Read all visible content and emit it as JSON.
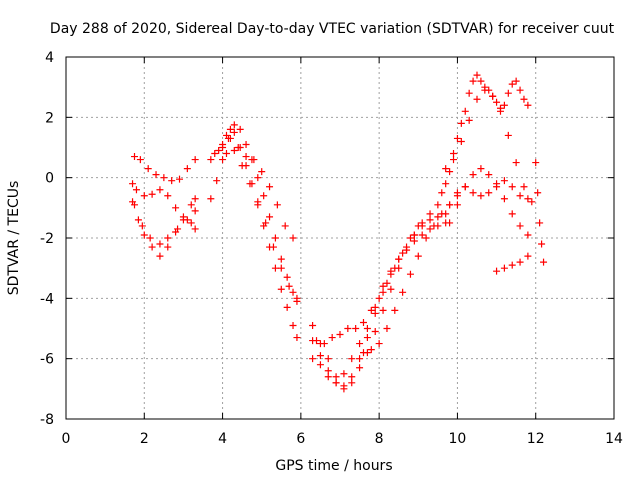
{
  "chart_data": {
    "type": "scatter",
    "title": "Day 288 of 2020, Sidereal Day-to-day VTEC variation (SDTVAR) for receiver cuut",
    "xlabel": "GPS time / hours",
    "ylabel": "SDTVAR / TECUs",
    "xlim": [
      0,
      14
    ],
    "ylim": [
      -8,
      4
    ],
    "xticks": [
      0,
      2,
      4,
      6,
      8,
      10,
      12,
      14
    ],
    "yticks": [
      -8,
      -6,
      -4,
      -2,
      0,
      2,
      4
    ],
    "xtick_labels": [
      "0",
      "2",
      "4",
      "6",
      "8",
      "10",
      "12",
      "14"
    ],
    "ytick_labels": [
      "-8",
      "-6",
      "-4",
      "-2",
      "0",
      "2",
      "4"
    ],
    "grid": true,
    "legend": "none",
    "marker": "plus",
    "color": "#ff0000",
    "series": [
      {
        "x": [
          1.75,
          1.9,
          2.1,
          2.3,
          2.5,
          2.7,
          2.9,
          3.1,
          3.3
        ],
        "y": [
          0.7,
          0.6,
          0.3,
          0.1,
          0.0,
          -0.1,
          -0.05,
          0.3,
          0.6
        ]
      },
      {
        "x": [
          1.7,
          1.8,
          2.0,
          2.2,
          2.4,
          2.6,
          2.8,
          3.0,
          3.2,
          3.3
        ],
        "y": [
          -0.2,
          -0.4,
          -0.6,
          -0.55,
          -0.4,
          -0.6,
          -1.0,
          -1.3,
          -1.5,
          -1.7
        ]
      },
      {
        "x": [
          1.7,
          1.85,
          2.0,
          2.2,
          2.4,
          2.6,
          2.8,
          3.0,
          3.2,
          3.3
        ],
        "y": [
          -0.8,
          -1.4,
          -1.9,
          -2.3,
          -2.6,
          -2.3,
          -1.8,
          -1.4,
          -0.9,
          -0.7
        ]
      },
      {
        "x": [
          1.75,
          1.95,
          2.15,
          2.4,
          2.6,
          2.85,
          3.1,
          3.3
        ],
        "y": [
          -0.9,
          -1.6,
          -2.0,
          -2.2,
          -2.0,
          -1.7,
          -1.4,
          -1.1
        ]
      },
      {
        "x": [
          3.7,
          3.8,
          3.9,
          4.0,
          4.1,
          4.2,
          4.3,
          4.45,
          4.6,
          4.75,
          4.9,
          5.05,
          5.2,
          5.35,
          5.5,
          5.65,
          5.8,
          5.9
        ],
        "y": [
          0.6,
          0.8,
          0.9,
          1.1,
          1.4,
          1.6,
          1.75,
          1.6,
          1.1,
          0.6,
          0.0,
          -0.6,
          -1.3,
          -2.0,
          -2.7,
          -3.3,
          -3.8,
          -4.1
        ]
      },
      {
        "x": [
          3.7,
          3.85,
          4.0,
          4.15,
          4.3,
          4.45,
          4.6,
          4.75,
          4.9,
          5.05,
          5.2,
          5.35,
          5.5,
          5.65,
          5.8,
          5.9
        ],
        "y": [
          -0.7,
          -0.1,
          0.6,
          1.3,
          1.5,
          1.0,
          0.4,
          -0.2,
          -0.9,
          -1.6,
          -2.3,
          -3.0,
          -3.7,
          -4.3,
          -4.9,
          -5.3
        ]
      },
      {
        "x": [
          4.0,
          4.2,
          4.4,
          4.6,
          4.8,
          5.0,
          5.2,
          5.4,
          5.6,
          5.8
        ],
        "y": [
          1.0,
          1.3,
          1.0,
          0.7,
          0.6,
          0.2,
          -0.3,
          -0.9,
          -1.6,
          -2.0
        ]
      },
      {
        "x": [
          4.1,
          4.3,
          4.5,
          4.7,
          4.9,
          5.1,
          5.3,
          5.5,
          5.7,
          5.9
        ],
        "y": [
          0.8,
          0.9,
          0.4,
          -0.2,
          -0.8,
          -1.5,
          -2.3,
          -3.0,
          -3.6,
          -4.0
        ]
      },
      {
        "x": [
          6.3,
          6.5,
          6.7,
          6.9,
          7.1,
          7.3,
          7.5,
          7.7,
          7.9,
          8.1,
          8.3,
          8.5,
          8.7,
          8.9,
          9.1,
          9.3,
          9.5,
          9.7
        ],
        "y": [
          -5.4,
          -5.9,
          -6.4,
          -6.8,
          -7.0,
          -6.6,
          -6.0,
          -5.3,
          -4.5,
          -3.8,
          -3.2,
          -2.7,
          -2.3,
          -1.9,
          -1.6,
          -1.4,
          -1.3,
          -1.2
        ]
      },
      {
        "x": [
          6.3,
          6.5,
          6.7,
          6.9,
          7.1,
          7.3,
          7.5,
          7.7,
          7.9,
          8.1,
          8.3,
          8.5,
          8.7,
          8.9,
          9.1,
          9.3,
          9.5
        ],
        "y": [
          -4.9,
          -5.5,
          -6.0,
          -6.6,
          -6.9,
          -6.8,
          -6.3,
          -5.8,
          -5.1,
          -4.4,
          -3.7,
          -3.0,
          -2.4,
          -1.9,
          -1.5,
          -1.2,
          -0.9
        ]
      },
      {
        "x": [
          6.3,
          6.5,
          6.7,
          6.9,
          7.1,
          7.3,
          7.5,
          7.7,
          7.9,
          8.1,
          8.3,
          8.5,
          8.7,
          8.9,
          9.1,
          9.3,
          9.5,
          9.7
        ],
        "y": [
          -6.0,
          -6.2,
          -6.6,
          -6.8,
          -6.5,
          -6.0,
          -5.5,
          -5.0,
          -4.3,
          -3.6,
          -3.1,
          -2.7,
          -2.4,
          -2.1,
          -1.9,
          -1.7,
          -1.6,
          -1.5
        ]
      },
      {
        "x": [
          6.4,
          6.6,
          6.8,
          7.0,
          7.2,
          7.4,
          7.6,
          7.8,
          8.0,
          8.2,
          8.4,
          8.6,
          8.8,
          9.0
        ],
        "y": [
          -5.4,
          -5.5,
          -5.3,
          -5.2,
          -5.0,
          -5.0,
          -4.8,
          -4.4,
          -4.0,
          -3.5,
          -3.0,
          -2.5,
          -2.0,
          -1.6
        ]
      },
      {
        "x": [
          7.6,
          7.8,
          8.0,
          8.2,
          8.4,
          8.6,
          8.8,
          9.0,
          9.2,
          9.4,
          9.6,
          9.8,
          10.0
        ],
        "y": [
          -5.8,
          -5.7,
          -5.5,
          -5.0,
          -4.4,
          -3.8,
          -3.2,
          -2.6,
          -2.0,
          -1.6,
          -1.2,
          -0.9,
          -0.6
        ]
      },
      {
        "x": [
          9.6,
          9.7,
          9.8,
          9.9,
          10.0,
          10.1,
          10.2,
          10.3,
          10.4,
          10.5,
          10.6,
          10.7,
          10.8,
          10.9,
          11.0,
          11.1,
          11.2,
          11.3,
          11.4,
          11.5,
          11.6,
          11.7,
          11.8
        ],
        "y": [
          -0.5,
          -0.2,
          0.2,
          0.8,
          1.3,
          1.8,
          2.2,
          2.8,
          3.2,
          3.4,
          3.2,
          3.0,
          2.9,
          2.7,
          2.5,
          2.3,
          2.4,
          2.8,
          3.1,
          3.2,
          2.9,
          2.6,
          2.4
        ]
      },
      {
        "x": [
          9.7,
          9.9,
          10.1,
          10.3,
          10.5,
          10.7,
          10.9,
          11.1,
          11.3,
          11.5,
          11.7,
          11.9
        ],
        "y": [
          0.3,
          0.6,
          1.2,
          1.9,
          2.6,
          2.9,
          2.7,
          2.2,
          1.4,
          0.5,
          -0.3,
          -0.8
        ]
      },
      {
        "x": [
          9.8,
          10.0,
          10.2,
          10.4,
          10.6,
          10.8,
          11.0,
          11.2,
          11.4,
          11.6,
          11.8
        ],
        "y": [
          -0.9,
          -0.5,
          -0.3,
          -0.5,
          -0.6,
          -0.5,
          -0.2,
          -0.1,
          -0.3,
          -0.6,
          -0.7
        ]
      },
      {
        "x": [
          9.8,
          10.0,
          10.2,
          10.4,
          10.6,
          10.8,
          11.0,
          11.2,
          11.4,
          11.6,
          11.8
        ],
        "y": [
          -1.5,
          -0.9,
          -0.3,
          0.1,
          0.3,
          0.1,
          -0.3,
          -0.7,
          -1.2,
          -1.6,
          -1.9
        ]
      },
      {
        "x": [
          11.0,
          11.2,
          11.4,
          11.6,
          11.8
        ],
        "y": [
          -3.1,
          -3.0,
          -2.9,
          -2.8,
          -2.6
        ]
      },
      {
        "x": [
          12.0,
          12.05,
          12.1,
          12.15,
          12.2
        ],
        "y": [
          0.5,
          -0.5,
          -1.5,
          -2.2,
          -2.8
        ]
      }
    ]
  }
}
